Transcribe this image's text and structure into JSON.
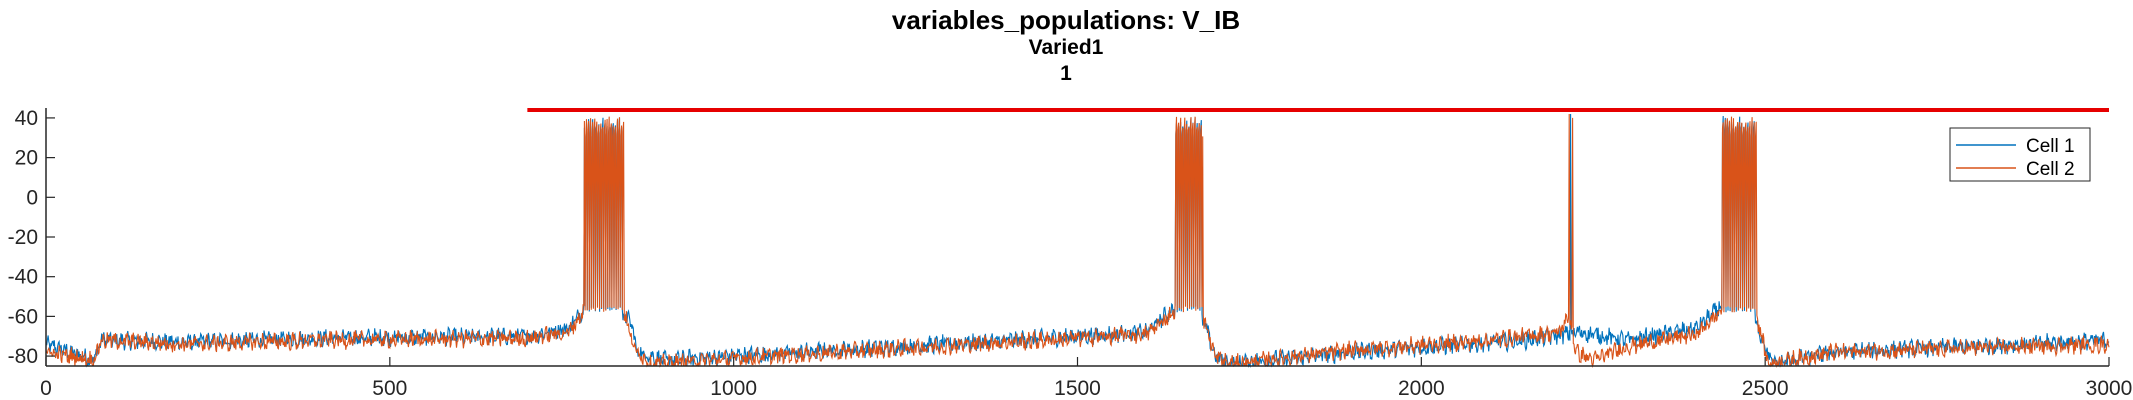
{
  "chart_data": {
    "type": "line",
    "title": "variables_populations: V_IB",
    "subtitle": "Varied1",
    "subtitle2": "1",
    "xlabel": "",
    "ylabel": "",
    "xlim": [
      0,
      3000
    ],
    "ylim": [
      -85,
      45
    ],
    "x_ticks": [
      "0",
      "500",
      "1000",
      "1500",
      "2000",
      "2500",
      "3000"
    ],
    "y_ticks": [
      "40",
      "20",
      "0",
      "-20",
      "-40",
      "-60",
      "-80"
    ],
    "grid": false,
    "legend_position": "top-right",
    "series": [
      {
        "name": "Cell 1",
        "color": "#0072BD",
        "baseline": [
          [
            0,
            -74
          ],
          [
            70,
            -82
          ],
          [
            80,
            -72
          ],
          [
            200,
            -73
          ],
          [
            400,
            -71
          ],
          [
            700,
            -70
          ],
          [
            760,
            -66
          ],
          [
            785,
            -55
          ],
          [
            850,
            -62
          ],
          [
            860,
            -78
          ],
          [
            900,
            -82
          ],
          [
            1100,
            -78
          ],
          [
            1400,
            -72
          ],
          [
            1600,
            -68
          ],
          [
            1640,
            -56
          ],
          [
            1685,
            -64
          ],
          [
            1700,
            -80
          ],
          [
            1720,
            -84
          ],
          [
            1900,
            -78
          ],
          [
            2150,
            -72
          ],
          [
            2230,
            -68
          ],
          [
            2300,
            -72
          ],
          [
            2400,
            -66
          ],
          [
            2435,
            -55
          ],
          [
            2490,
            -66
          ],
          [
            2510,
            -84
          ],
          [
            2600,
            -78
          ],
          [
            3000,
            -72
          ]
        ],
        "bursts": [
          [
            783,
            838,
            35
          ],
          [
            1643,
            1680,
            35
          ],
          [
            2437,
            2485,
            35
          ]
        ],
        "spikes": [
          [
            2217,
            42
          ]
        ]
      },
      {
        "name": "Cell 2",
        "color": "#D95319",
        "baseline": [
          [
            0,
            -78
          ],
          [
            70,
            -82
          ],
          [
            80,
            -72
          ],
          [
            200,
            -74
          ],
          [
            400,
            -72
          ],
          [
            700,
            -71
          ],
          [
            760,
            -68
          ],
          [
            783,
            -57
          ],
          [
            840,
            -57
          ],
          [
            855,
            -76
          ],
          [
            880,
            -84
          ],
          [
            1100,
            -79
          ],
          [
            1400,
            -73
          ],
          [
            1600,
            -69
          ],
          [
            1643,
            -57
          ],
          [
            1680,
            -57
          ],
          [
            1700,
            -80
          ],
          [
            1720,
            -84
          ],
          [
            1900,
            -77
          ],
          [
            2100,
            -72
          ],
          [
            2200,
            -68
          ],
          [
            2215,
            -60
          ],
          [
            2225,
            -78
          ],
          [
            2250,
            -82
          ],
          [
            2300,
            -75
          ],
          [
            2400,
            -69
          ],
          [
            2437,
            -57
          ],
          [
            2485,
            -57
          ],
          [
            2505,
            -84
          ],
          [
            2600,
            -78
          ],
          [
            3000,
            -74
          ]
        ],
        "bursts": [
          [
            783,
            840,
            35
          ],
          [
            1643,
            1682,
            35
          ],
          [
            2437,
            2487,
            35
          ]
        ],
        "spikes": [
          [
            2215,
            42
          ],
          [
            2220,
            40
          ]
        ]
      }
    ],
    "threshold_line": {
      "y": 44,
      "x_range": [
        700,
        3000
      ],
      "color": "#E60000"
    }
  }
}
